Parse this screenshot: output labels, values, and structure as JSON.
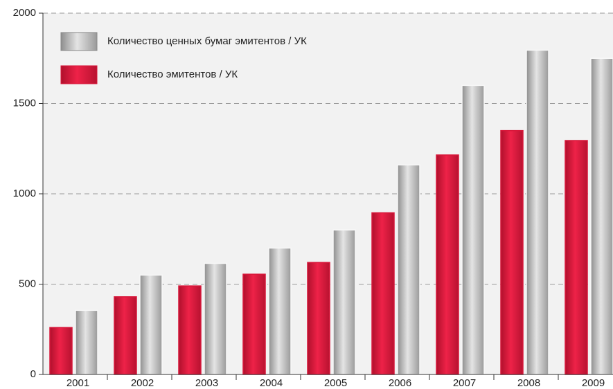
{
  "chart_data": {
    "type": "bar",
    "categories": [
      "2001",
      "2002",
      "2003",
      "2004",
      "2005",
      "2006",
      "2007",
      "2008",
      "2009"
    ],
    "series": [
      {
        "name": "Количество ценных бумаг эмитентов / УК",
        "color": "#b4b4b4",
        "values": [
          355,
          550,
          615,
          700,
          800,
          1160,
          1600,
          1795,
          1750
        ]
      },
      {
        "name": "Количество эмитентов / УК",
        "color": "#d8173a",
        "values": [
          260,
          430,
          490,
          555,
          620,
          895,
          1215,
          1350,
          1295
        ]
      }
    ],
    "ylim": [
      0,
      2000
    ],
    "yticks": [
      0,
      500,
      1000,
      1500,
      2000
    ],
    "grid": true,
    "legend": "top-left"
  }
}
